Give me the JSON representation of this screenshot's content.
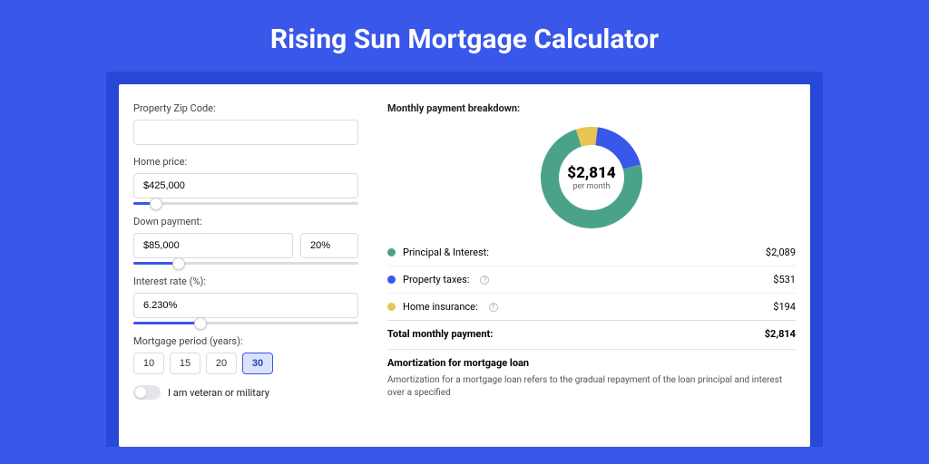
{
  "title": "Rising Sun Mortgage Calculator",
  "colors": {
    "page_bg": "#3957e8",
    "inner_bg": "#2848d8",
    "card_bg": "#ffffff",
    "accent": "#3957e8",
    "slider_track": "#dadce3",
    "selected_bg": "#dbe3fb"
  },
  "form": {
    "zip_label": "Property Zip Code:",
    "zip_value": "",
    "price_label": "Home price:",
    "price_value": "$425,000",
    "price_slider_pct": 10,
    "down_label": "Down payment:",
    "down_value": "$85,000",
    "down_pct": "20%",
    "down_slider_pct": 20,
    "rate_label": "Interest rate (%):",
    "rate_value": "6.230%",
    "rate_slider_pct": 30,
    "period_label": "Mortgage period (years):",
    "periods": [
      "10",
      "15",
      "20",
      "30"
    ],
    "period_selected": "30",
    "veteran_label": "I am veteran or military",
    "veteran_on": false
  },
  "breakdown": {
    "title": "Monthly payment breakdown:",
    "center_value": "$2,814",
    "center_sub": "per month",
    "items": [
      {
        "label": "Principal & Interest:",
        "amount": "$2,089",
        "color": "#4aa389",
        "angle": 267,
        "help": false
      },
      {
        "label": "Property taxes:",
        "amount": "$531",
        "color": "#3957e8",
        "angle": 68,
        "help": true
      },
      {
        "label": "Home insurance:",
        "amount": "$194",
        "color": "#e9c452",
        "angle": 25,
        "help": true
      }
    ],
    "total_label": "Total monthly payment:",
    "total_value": "$2,814",
    "donut": {
      "size": 116,
      "outer_r": 56,
      "inner_r": 36
    }
  },
  "amortization": {
    "title": "Amortization for mortgage loan",
    "text": "Amortization for a mortgage loan refers to the gradual repayment of the loan principal and interest over a specified"
  }
}
